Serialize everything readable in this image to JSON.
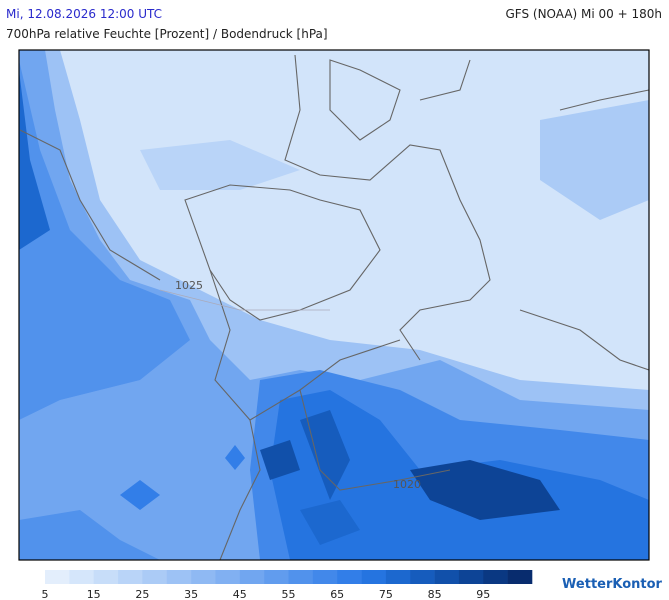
{
  "header": {
    "datetime": "Mi, 12.08.2026 12:00 UTC",
    "model": "GFS (NOAA) Mi 00 + 180h",
    "subtitle": "700hPa relative Feuchte [Prozent] / Bodendruck [hPa]"
  },
  "isobars": [
    "1025",
    "1020"
  ],
  "legend": {
    "colors": [
      "#e3eefc",
      "#d5e6fb",
      "#c7ddf9",
      "#b9d4f8",
      "#abcbf6",
      "#9dc2f5",
      "#8fb9f3",
      "#81b0f2",
      "#71a6f0",
      "#619cee",
      "#5192ec",
      "#4288ea",
      "#327ee8",
      "#2574e0",
      "#1c68cf",
      "#165cbd",
      "#1150aa",
      "#0d4496",
      "#0a3882",
      "#082c6e"
    ],
    "labels": [
      5,
      15,
      25,
      35,
      45,
      55,
      65,
      75,
      85,
      95
    ]
  },
  "brand": "WetterKontor"
}
